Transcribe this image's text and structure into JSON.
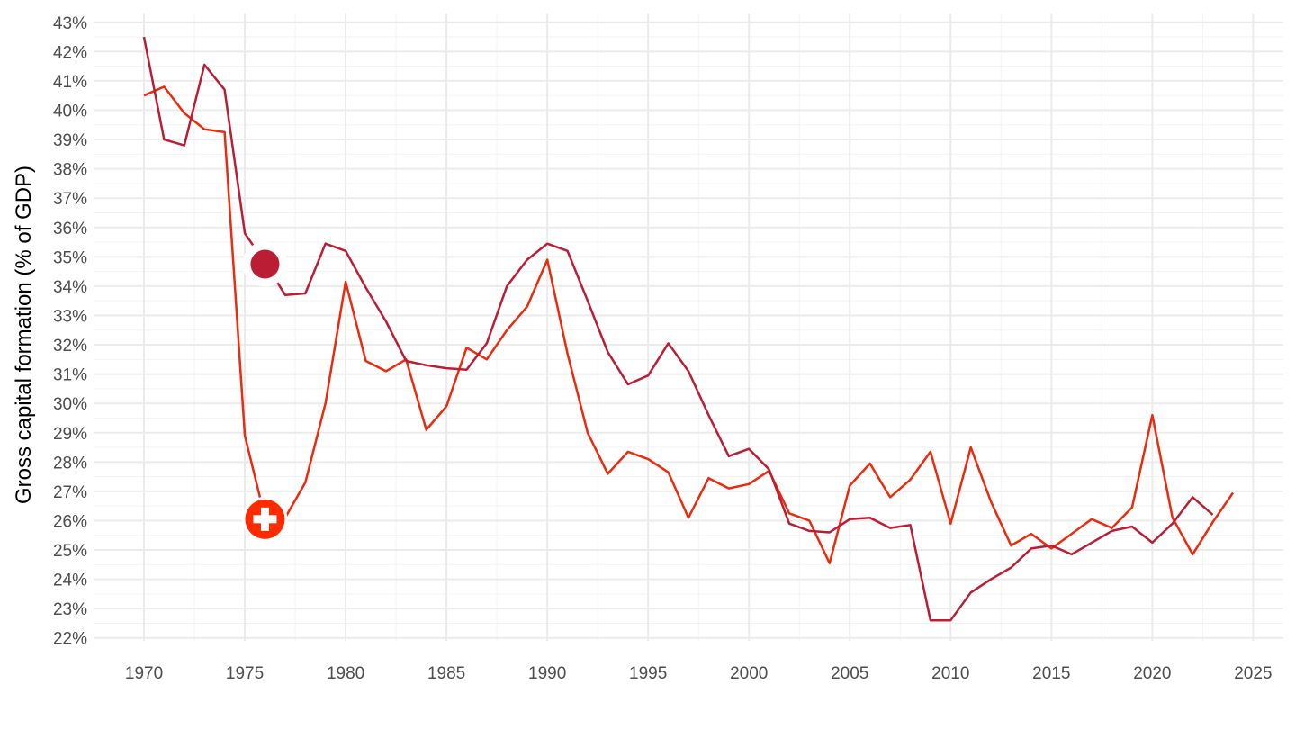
{
  "chart_data": {
    "type": "line",
    "ylabel": "Gross capital formation (% of GDP)",
    "xlabel": "",
    "xlim": [
      1967.5,
      2026.5
    ],
    "ylim": [
      21.9,
      43.3
    ],
    "x_ticks": [
      1970,
      1975,
      1980,
      1985,
      1990,
      1995,
      2000,
      2005,
      2010,
      2015,
      2020,
      2025
    ],
    "x_tick_labels": [
      "1970",
      "1975",
      "1980",
      "1985",
      "1990",
      "1995",
      "2000",
      "2005",
      "2010",
      "2015",
      "2020",
      "2025"
    ],
    "y_ticks": [
      22,
      23,
      24,
      25,
      26,
      27,
      28,
      29,
      30,
      31,
      32,
      33,
      34,
      35,
      36,
      37,
      38,
      39,
      40,
      41,
      42,
      43
    ],
    "y_tick_labels": [
      "22%",
      "23%",
      "24%",
      "25%",
      "26%",
      "27%",
      "28%",
      "29%",
      "30%",
      "31%",
      "32%",
      "33%",
      "34%",
      "35%",
      "36%",
      "37%",
      "38%",
      "39%",
      "40%",
      "41%",
      "42%",
      "43%"
    ],
    "grid": true,
    "legend": "flag markers on lines",
    "series": [
      {
        "color": "#eb2a0e",
        "marker_icon": "swiss-flag-icon",
        "marker_year": 1976,
        "marker_value": 26.05,
        "x": [
          1970,
          1971,
          1972,
          1973,
          1974,
          1975,
          1976,
          1977,
          1978,
          1979,
          1980,
          1981,
          1982,
          1983,
          1984,
          1985,
          1986,
          1987,
          1988,
          1989,
          1990,
          1991,
          1992,
          1993,
          1994,
          1995,
          1996,
          1997,
          1998,
          1999,
          2000,
          2001,
          2002,
          2003,
          2004,
          2005,
          2006,
          2007,
          2008,
          2009,
          2010,
          2011,
          2012,
          2013,
          2014,
          2015,
          2016,
          2017,
          2018,
          2019,
          2020,
          2021,
          2022,
          2023,
          2024
        ],
        "values": [
          40.5,
          40.8,
          39.9,
          39.35,
          39.25,
          28.9,
          26.1,
          26.1,
          27.3,
          30.0,
          34.15,
          31.45,
          31.1,
          31.5,
          29.1,
          29.9,
          31.9,
          31.5,
          32.5,
          33.3,
          34.9,
          31.7,
          29.0,
          27.6,
          28.35,
          28.1,
          27.65,
          26.1,
          27.45,
          27.1,
          27.25,
          27.7,
          26.25,
          26.0,
          24.55,
          27.2,
          27.95,
          26.8,
          27.4,
          28.35,
          25.9,
          28.5,
          26.65,
          25.15,
          25.55,
          25.05,
          25.55,
          26.05,
          25.75,
          26.45,
          29.6,
          26.1,
          24.85,
          25.95,
          26.95
        ]
      },
      {
        "color": "#bb1d34",
        "marker_icon": "circle-flag-icon",
        "marker_year": 1976,
        "marker_value": 34.75,
        "x": [
          1970,
          1971,
          1972,
          1973,
          1974,
          1975,
          1976,
          1977,
          1978,
          1979,
          1980,
          1981,
          1982,
          1983,
          1984,
          1985,
          1986,
          1987,
          1988,
          1989,
          1990,
          1991,
          1992,
          1993,
          1994,
          1995,
          1996,
          1997,
          1998,
          1999,
          2000,
          2001,
          2002,
          2003,
          2004,
          2005,
          2006,
          2007,
          2008,
          2009,
          2010,
          2011,
          2012,
          2013,
          2014,
          2015,
          2016,
          2017,
          2018,
          2019,
          2020,
          2021,
          2022,
          2023
        ],
        "values": [
          42.5,
          39.0,
          38.8,
          41.55,
          40.7,
          35.8,
          34.8,
          33.7,
          33.75,
          35.45,
          35.2,
          33.95,
          32.8,
          31.45,
          31.3,
          31.2,
          31.15,
          32.05,
          34.0,
          34.9,
          35.45,
          35.2,
          33.5,
          31.75,
          30.65,
          30.95,
          32.05,
          31.1,
          29.6,
          28.2,
          28.45,
          27.75,
          25.9,
          25.65,
          25.6,
          26.05,
          26.1,
          25.75,
          25.85,
          22.6,
          22.6,
          23.55,
          24.0,
          24.4,
          25.05,
          25.15,
          24.85,
          25.25,
          25.65,
          25.8,
          25.25,
          25.9,
          26.8,
          26.2
        ]
      }
    ]
  }
}
